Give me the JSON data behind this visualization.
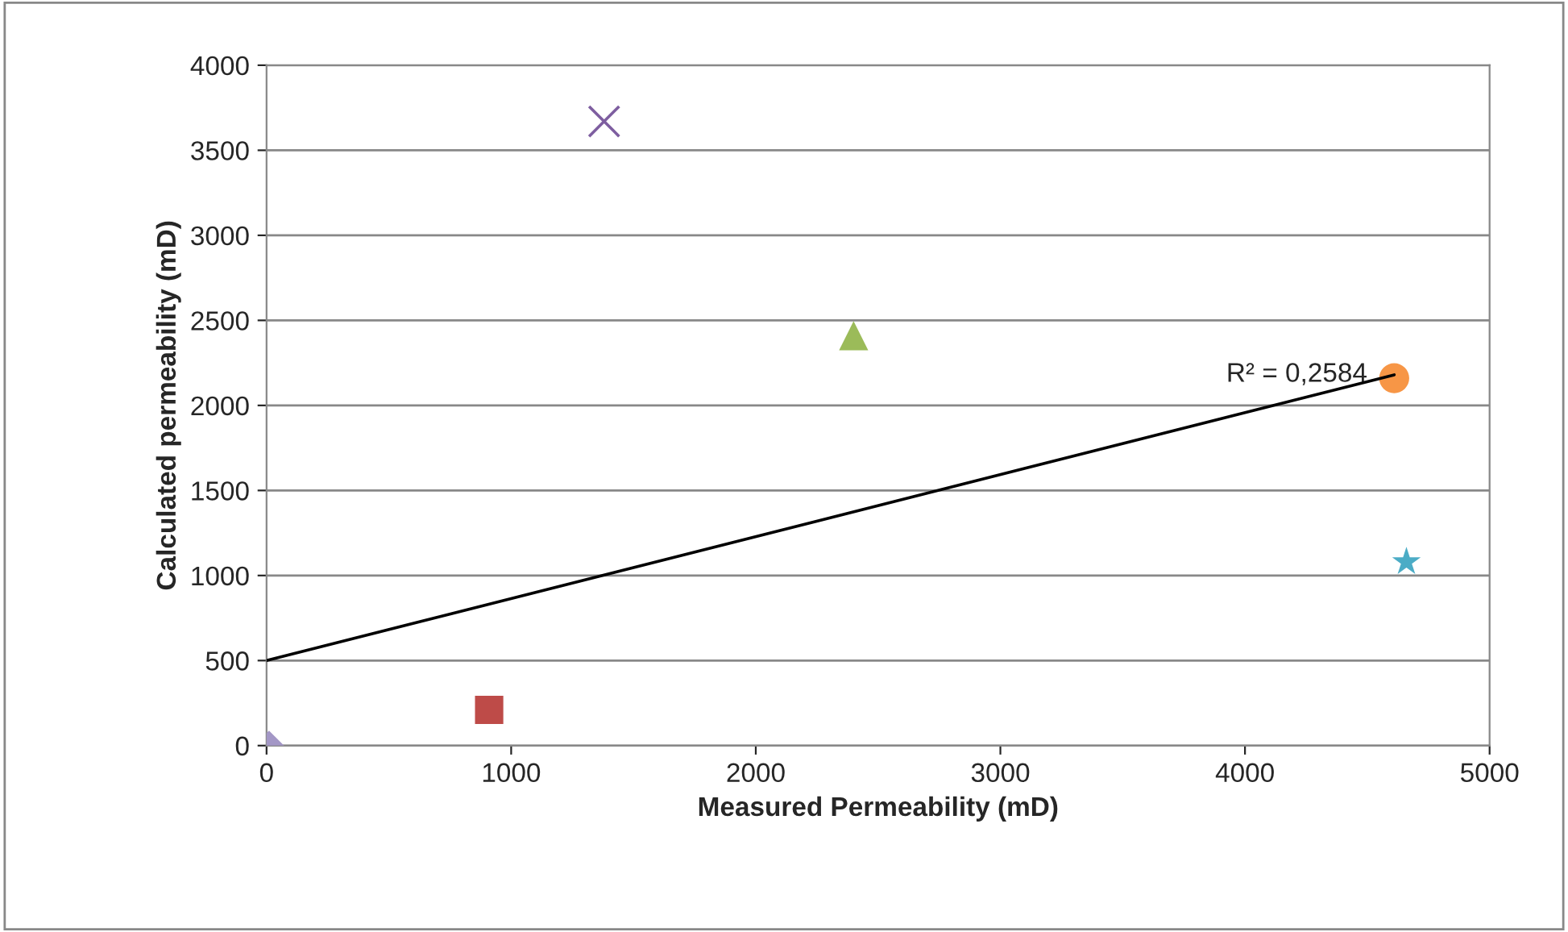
{
  "chart_data": {
    "type": "scatter",
    "xlabel": "Measured Permeability (mD)",
    "ylabel": "Calculated permeability (mD)",
    "xlim": [
      0,
      5000
    ],
    "xticks": [
      0,
      1000,
      2000,
      3000,
      4000,
      5000
    ],
    "ylim": [
      0,
      4000
    ],
    "yticks": [
      0,
      500,
      1000,
      1500,
      2000,
      2500,
      3000,
      3500,
      4000
    ],
    "grid": "y",
    "series": [
      {
        "color": "#a397c6",
        "marker": "diamond",
        "x": [
          10
        ],
        "values": [
          0
        ]
      },
      {
        "color": "#be4b48",
        "marker": "square",
        "x": [
          910
        ],
        "values": [
          210
        ]
      },
      {
        "color": "#7e5ea0",
        "marker": "cross",
        "x": [
          1380
        ],
        "values": [
          3670
        ]
      },
      {
        "color": "#9bbb59",
        "marker": "triangle",
        "x": [
          2400
        ],
        "values": [
          2410
        ]
      },
      {
        "color": "#f79646",
        "marker": "circle",
        "x": [
          4610
        ],
        "values": [
          2160
        ]
      },
      {
        "color": "#4bacc6",
        "marker": "star",
        "x": [
          4660
        ],
        "values": [
          1080
        ]
      },
      {
        "type": "line",
        "color": "#000000",
        "marker": "none",
        "x": [
          0,
          4610
        ],
        "values": [
          500,
          2180
        ]
      }
    ],
    "annotations": [
      {
        "text": "R² = 0,2584",
        "x": 4610,
        "y": 2180
      }
    ]
  }
}
